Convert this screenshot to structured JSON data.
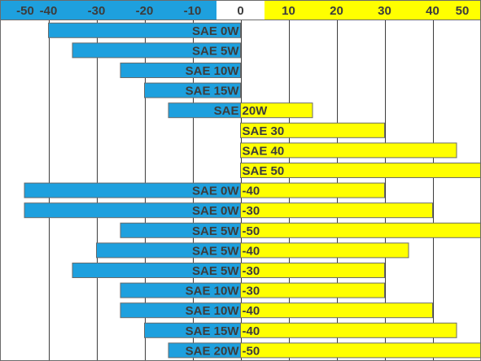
{
  "colors": {
    "cold": "#1ea0de",
    "hot": "#ffff00",
    "header_zero": "#ffffff",
    "border": "#6b6b6b",
    "grid": "#3c3c3c",
    "text": "#3c3c3c"
  },
  "chart_data": {
    "type": "bar",
    "orientation": "horizontal",
    "xlim": [
      -50,
      50
    ],
    "grid": true,
    "tick_labels": [
      "-50",
      "-40",
      "-30",
      "-20",
      "-10",
      "0",
      "10",
      "20",
      "30",
      "40",
      "50"
    ],
    "rows": [
      {
        "cold_label": "SAE 0W",
        "hot_label": "",
        "min": -40,
        "max": 0
      },
      {
        "cold_label": "SAE 5W",
        "hot_label": "",
        "min": -35,
        "max": 0
      },
      {
        "cold_label": "SAE 10W",
        "hot_label": "",
        "min": -25,
        "max": 0
      },
      {
        "cold_label": "SAE 15W",
        "hot_label": "",
        "min": -20,
        "max": 0
      },
      {
        "cold_label": "SAE",
        "hot_label": "20W",
        "min": -15,
        "max": 15
      },
      {
        "cold_label": "",
        "hot_label": "SAE 30",
        "min": 0,
        "max": 30
      },
      {
        "cold_label": "",
        "hot_label": "SAE 40",
        "min": 0,
        "max": 45
      },
      {
        "cold_label": "",
        "hot_label": "SAE 50",
        "min": 0,
        "max": 50
      },
      {
        "cold_label": "SAE 0W",
        "hot_label": "-40",
        "min": -45,
        "max": 30
      },
      {
        "cold_label": "SAE 0W",
        "hot_label": "-30",
        "min": -45,
        "max": 40
      },
      {
        "cold_label": "SAE 5W",
        "hot_label": "-50",
        "min": -25,
        "max": 50
      },
      {
        "cold_label": "SAE 5W",
        "hot_label": "-40",
        "min": -30,
        "max": 35
      },
      {
        "cold_label": "SAE 5W",
        "hot_label": "-30",
        "min": -35,
        "max": 30
      },
      {
        "cold_label": "SAE 10W",
        "hot_label": "-30",
        "min": -25,
        "max": 30
      },
      {
        "cold_label": "SAE 10W",
        "hot_label": "-40",
        "min": -25,
        "max": 40
      },
      {
        "cold_label": "SAE 15W",
        "hot_label": "-40",
        "min": -20,
        "max": 45
      },
      {
        "cold_label": "SAE 20W",
        "hot_label": "-50",
        "min": -15,
        "max": 50
      }
    ]
  }
}
